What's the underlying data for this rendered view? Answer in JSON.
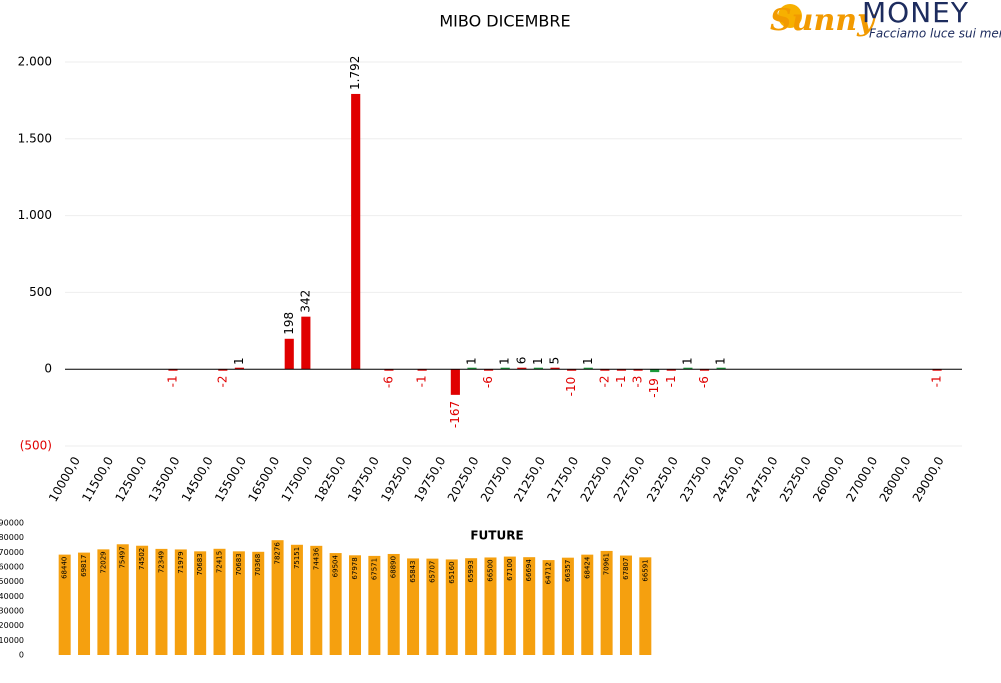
{
  "logo": {
    "brand": "Sunny",
    "name": "MONEY",
    "tagline": "Facciamo luce sui mercati"
  },
  "chart_data": [
    {
      "type": "bar",
      "title": "MIBO DICEMBRE",
      "categories": [
        "10000,0",
        null,
        "11500,0",
        null,
        "12500,0",
        null,
        "13500,0",
        null,
        "14500,0",
        null,
        "15500,0",
        null,
        "16500,0",
        null,
        "17500,0",
        null,
        "18250,0",
        null,
        "18750,0",
        null,
        "19250,0",
        null,
        "19750,0",
        null,
        "20250,0",
        null,
        "20750,0",
        null,
        "21250,0",
        null,
        "21750,0",
        null,
        "22250,0",
        null,
        "22750,0",
        null,
        "23250,0",
        null,
        "23750,0",
        null,
        "24250,0",
        null,
        "24750,0",
        null,
        "25250,0",
        null,
        "26000,0",
        null,
        "27000,0",
        null,
        "28000,0",
        null,
        "29000,0",
        null
      ],
      "values": [
        null,
        null,
        null,
        null,
        null,
        null,
        -1,
        null,
        null,
        -2,
        1,
        null,
        null,
        198,
        342,
        null,
        null,
        1792,
        null,
        -6,
        null,
        -1,
        null,
        -167,
        1,
        -6,
        1,
        6,
        1,
        5,
        -10,
        1,
        -2,
        -1,
        -3,
        -19,
        -1,
        1,
        -6,
        1,
        null,
        null,
        null,
        null,
        null,
        null,
        null,
        null,
        null,
        null,
        null,
        null,
        -1,
        null
      ],
      "value_labels": [
        null,
        null,
        null,
        null,
        null,
        null,
        null,
        null,
        null,
        null,
        null,
        null,
        null,
        null,
        null,
        null,
        null,
        "1.792",
        null,
        null,
        null,
        null,
        null,
        null,
        null,
        null,
        null,
        null,
        null,
        null,
        null,
        null,
        null,
        null,
        null,
        null,
        null,
        null,
        null,
        null,
        null,
        null,
        null,
        null,
        null,
        null,
        null,
        null,
        null,
        null,
        null,
        null,
        null,
        null
      ],
      "color": "#e00000",
      "bar_colors": [
        "#e00000",
        "#e00000",
        "#e00000",
        "#e00000",
        "#e00000",
        "#e00000",
        "#e00000",
        "#e00000",
        "#e00000",
        "#e00000",
        "#e00000",
        "#e00000",
        "#e00000",
        "#e00000",
        "#e00000",
        "#e00000",
        "#e00000",
        "#e00000",
        "#e00000",
        "#e00000",
        "#e00000",
        "#e00000",
        "#e00000",
        "#e00000",
        "#1a9a3a",
        "#e00000",
        "#1a9a3a",
        "#e00000",
        "#1a9a3a",
        "#e00000",
        "#e00000",
        "#1a9a3a",
        "#e00000",
        "#e00000",
        "#e00000",
        "#1a9a3a",
        "#e00000",
        "#1a9a3a",
        "#e00000",
        "#1a9a3a",
        "#e00000",
        "#e00000",
        "#e00000",
        "#e00000",
        "#e00000",
        "#e00000",
        "#e00000",
        "#e00000",
        "#e00000",
        "#e00000",
        "#e00000",
        "#e00000",
        "#e00000",
        "#e00000"
      ],
      "ylim": [
        -500,
        2000
      ],
      "yticks": [
        {
          "value": -500,
          "label": "(500)"
        },
        0,
        500,
        {
          "value": 1000,
          "label": "1.000"
        },
        {
          "value": 1500,
          "label": "1.500"
        },
        {
          "value": 2000,
          "label": "2.000"
        }
      ],
      "grid": true
    },
    {
      "type": "bar",
      "title": "FUTURE",
      "values": [
        68440,
        69817,
        72029,
        75497,
        74502,
        72349,
        71979,
        70683,
        72415,
        70683,
        70368,
        78276,
        75151,
        74436,
        69504,
        67978,
        67571,
        68890,
        65843,
        65707,
        65160,
        65993,
        66500,
        67100,
        66694,
        64712,
        66357,
        68424,
        70961,
        67807,
        66591
      ],
      "color": "#f5a00f",
      "ylim": [
        0,
        90000
      ],
      "yticks": [
        0,
        10000,
        20000,
        30000,
        40000,
        50000,
        60000,
        70000,
        80000,
        90000
      ],
      "grid": false
    }
  ]
}
